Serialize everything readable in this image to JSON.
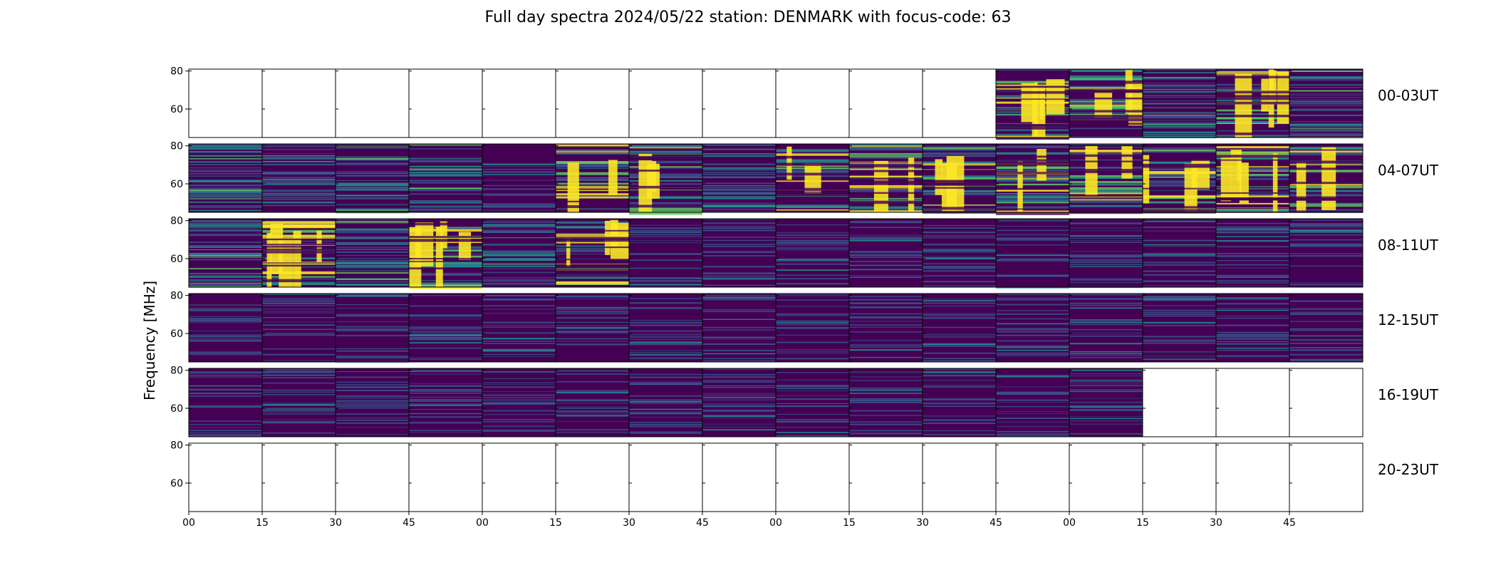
{
  "chart_data": {
    "type": "heatmap",
    "title": "Full day spectra 2024/05/22 station: DENMARK with focus-code: 63",
    "ylabel": "Frequency [MHz]",
    "xlabel": "",
    "ylim": [
      45,
      81
    ],
    "yticks": [
      60,
      80
    ],
    "xticks": [
      "00",
      "15",
      "30",
      "45",
      "00",
      "15",
      "30",
      "45",
      "00",
      "15",
      "30",
      "45",
      "00",
      "15",
      "30",
      "45"
    ],
    "colormap": [
      "#440154",
      "#3b528b",
      "#21918c",
      "#5ec962",
      "#fde725"
    ],
    "rows": [
      {
        "label": "00-03UT",
        "panels": [
          0,
          0,
          0,
          0,
          0,
          0,
          0,
          0,
          0,
          0,
          0,
          3,
          3,
          2,
          3,
          2
        ]
      },
      {
        "label": "04-07UT",
        "panels": [
          2,
          2,
          2,
          2,
          1,
          3,
          3,
          2,
          3,
          3,
          3,
          3,
          3,
          3,
          3,
          3
        ]
      },
      {
        "label": "08-11UT",
        "panels": [
          2,
          3,
          2,
          3,
          2,
          3,
          1,
          1,
          1,
          1,
          1,
          1,
          1,
          1,
          1,
          1
        ]
      },
      {
        "label": "12-15UT",
        "panels": [
          1,
          1,
          1,
          1,
          1,
          1,
          1,
          1,
          1,
          1,
          1,
          1,
          1,
          1,
          1,
          1
        ]
      },
      {
        "label": "16-19UT",
        "panels": [
          1,
          1,
          1,
          1,
          1,
          1,
          1,
          1,
          1,
          1,
          1,
          1,
          1,
          0,
          0,
          0
        ]
      },
      {
        "label": "20-23UT",
        "panels": [
          0,
          0,
          0,
          0,
          0,
          0,
          0,
          0,
          0,
          0,
          0,
          0,
          0,
          0,
          0,
          0
        ]
      }
    ],
    "grid": false,
    "legend": "none"
  }
}
